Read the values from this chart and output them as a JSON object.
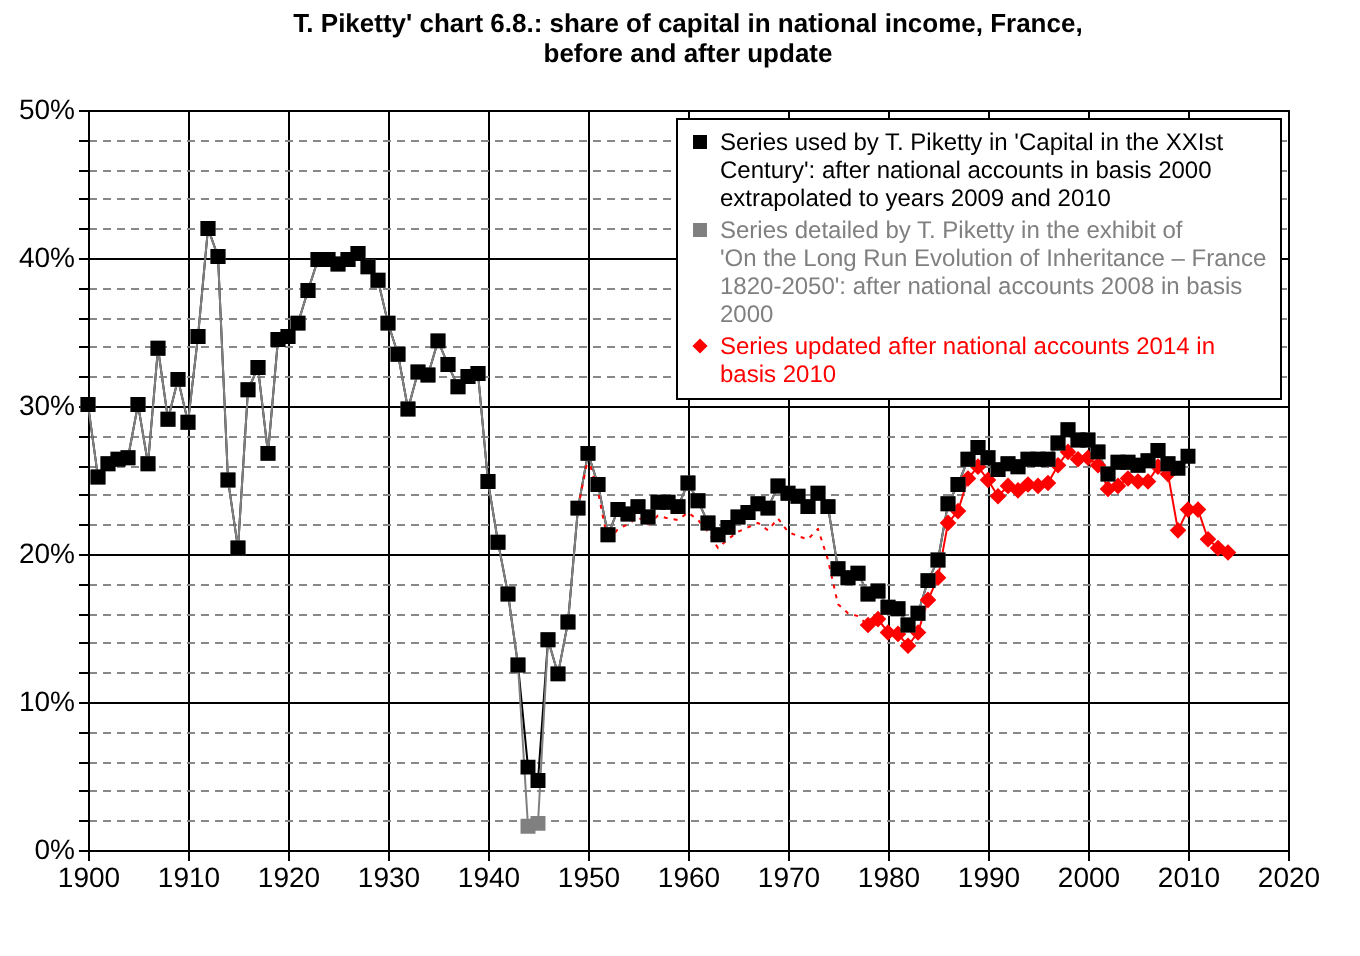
{
  "chart_data": {
    "type": "line",
    "title": "T. Piketty' chart 6.8.: share of capital in national income, France, before and after update",
    "xlim": [
      1900,
      2020
    ],
    "xticks": [
      1900,
      1910,
      1920,
      1930,
      1940,
      1950,
      1960,
      1970,
      1980,
      1990,
      2000,
      2010,
      2020
    ],
    "ylim": [
      0,
      50
    ],
    "yticks": [
      {
        "value": 0,
        "label": "0%"
      },
      {
        "value": 2,
        "label": null
      },
      {
        "value": 4,
        "label": null
      },
      {
        "value": 6,
        "label": null
      },
      {
        "value": 8,
        "label": null
      },
      {
        "value": 10,
        "label": "10%"
      },
      {
        "value": 12,
        "label": null
      },
      {
        "value": 14,
        "label": null
      },
      {
        "value": 16,
        "label": null
      },
      {
        "value": 18,
        "label": null
      },
      {
        "value": 20,
        "label": "20%"
      },
      {
        "value": 22,
        "label": null
      },
      {
        "value": 24,
        "label": null
      },
      {
        "value": 26,
        "label": null
      },
      {
        "value": 28,
        "label": null
      },
      {
        "value": 30,
        "label": "30%"
      },
      {
        "value": 32,
        "label": null
      },
      {
        "value": 34,
        "label": null
      },
      {
        "value": 36,
        "label": null
      },
      {
        "value": 38,
        "label": null
      },
      {
        "value": 40,
        "label": "40%"
      },
      {
        "value": 42,
        "label": null
      },
      {
        "value": 44,
        "label": null
      },
      {
        "value": 46,
        "label": null
      },
      {
        "value": 48,
        "label": null
      },
      {
        "value": 50,
        "label": "50%"
      }
    ],
    "grid": true,
    "legend": "top right",
    "series": [
      {
        "name": "Series used by T. Piketty in 'Capital in the XXIst Century': after national accounts in basis 2000 extrapolated to years 2009 and 2010",
        "color": "#000000",
        "marker": "square",
        "line_style": "solid",
        "x": [
          1900,
          1901,
          1902,
          1903,
          1904,
          1905,
          1906,
          1907,
          1908,
          1909,
          1910,
          1911,
          1912,
          1913,
          1914,
          1915,
          1916,
          1917,
          1918,
          1919,
          1920,
          1921,
          1922,
          1923,
          1924,
          1925,
          1926,
          1927,
          1928,
          1929,
          1930,
          1931,
          1932,
          1933,
          1934,
          1935,
          1936,
          1937,
          1938,
          1939,
          1940,
          1941,
          1942,
          1943,
          1944,
          1945,
          1946,
          1947,
          1948,
          1949,
          1950,
          1951,
          1952,
          1953,
          1954,
          1955,
          1956,
          1957,
          1958,
          1959,
          1960,
          1961,
          1962,
          1963,
          1964,
          1965,
          1966,
          1967,
          1968,
          1969,
          1970,
          1971,
          1972,
          1973,
          1974,
          1975,
          1976,
          1977,
          1978,
          1979,
          1980,
          1981,
          1982,
          1983,
          1984,
          1985,
          1986,
          1987,
          1988,
          1989,
          1990,
          1991,
          1992,
          1993,
          1994,
          1995,
          1996,
          1997,
          1998,
          1999,
          2000,
          2001,
          2002,
          2003,
          2004,
          2005,
          2006,
          2007,
          2008,
          2009,
          2010
        ],
        "values": [
          30.1,
          25.2,
          26.1,
          26.4,
          26.5,
          30.1,
          26.1,
          33.9,
          29.1,
          31.8,
          28.9,
          34.7,
          42.0,
          40.1,
          25.0,
          20.4,
          31.1,
          32.6,
          26.8,
          34.5,
          34.7,
          35.6,
          37.8,
          39.9,
          39.9,
          39.6,
          39.9,
          40.3,
          39.4,
          38.5,
          35.6,
          33.5,
          29.8,
          32.3,
          32.1,
          34.4,
          32.8,
          31.3,
          32.0,
          32.2,
          24.9,
          20.8,
          17.3,
          12.5,
          5.6,
          4.7,
          14.2,
          11.9,
          15.4,
          23.1,
          26.8,
          24.7,
          21.3,
          23.0,
          22.7,
          23.2,
          22.5,
          23.5,
          23.5,
          23.2,
          24.8,
          23.6,
          22.1,
          21.3,
          21.8,
          22.5,
          22.8,
          23.4,
          23.1,
          24.6,
          24.1,
          23.9,
          23.2,
          24.1,
          23.2,
          19.0,
          18.4,
          18.7,
          17.3,
          17.5,
          16.4,
          16.3,
          15.2,
          16.0,
          18.2,
          19.6,
          23.4,
          24.7,
          26.4,
          27.2,
          26.5,
          25.7,
          26.1,
          25.9,
          26.4,
          26.4,
          26.4,
          27.5,
          28.4,
          27.7,
          27.7,
          26.9,
          25.4,
          26.2,
          26.2,
          26.0,
          26.3,
          27.0,
          26.1,
          25.8,
          26.6
        ]
      },
      {
        "name": "Series detailed by T. Piketty in the exhibit of 'On the Long Run Evolution of Inheritance – France 1820-2050': after national accounts 2008 in basis 2000",
        "color": "#808080",
        "marker": "square",
        "line_style": "solid",
        "x": [
          1900,
          1901,
          1902,
          1903,
          1904,
          1905,
          1906,
          1907,
          1908,
          1909,
          1910,
          1911,
          1912,
          1913,
          1914,
          1915,
          1916,
          1917,
          1918,
          1919,
          1920,
          1921,
          1922,
          1923,
          1924,
          1925,
          1926,
          1927,
          1928,
          1929,
          1930,
          1931,
          1932,
          1933,
          1934,
          1935,
          1936,
          1937,
          1938,
          1939,
          1940,
          1941,
          1942,
          1943,
          1944,
          1945,
          1946,
          1947,
          1948,
          1949,
          1950,
          1951,
          1952,
          1953,
          1954,
          1955,
          1956,
          1957,
          1958,
          1959,
          1960,
          1961,
          1962,
          1963,
          1964,
          1965,
          1966,
          1967,
          1968,
          1969,
          1970,
          1971,
          1972,
          1973,
          1974,
          1975,
          1976,
          1977,
          1978,
          1979,
          1980,
          1981,
          1982,
          1983,
          1984,
          1985,
          1986,
          1987,
          1988,
          1989,
          1990,
          1991,
          1992,
          1993,
          1994,
          1995,
          1996,
          1997,
          1998,
          1999,
          2000,
          2001,
          2002,
          2003,
          2004,
          2005,
          2006,
          2007,
          2008
        ],
        "values": [
          30.1,
          25.2,
          26.1,
          26.4,
          26.5,
          30.1,
          26.1,
          33.9,
          29.1,
          31.8,
          28.9,
          34.7,
          42.0,
          40.1,
          25.0,
          20.4,
          31.1,
          32.6,
          26.8,
          34.5,
          34.7,
          35.6,
          37.8,
          39.9,
          39.9,
          39.6,
          39.9,
          40.3,
          39.4,
          38.5,
          35.6,
          33.5,
          29.8,
          32.3,
          32.1,
          34.4,
          32.8,
          31.3,
          32.0,
          32.2,
          24.9,
          20.8,
          17.3,
          12.5,
          1.6,
          1.8,
          14.2,
          11.9,
          15.4,
          23.1,
          26.8,
          24.7,
          21.3,
          23.0,
          22.7,
          23.2,
          22.5,
          23.5,
          23.5,
          23.2,
          24.8,
          23.6,
          22.1,
          21.3,
          21.8,
          22.5,
          22.8,
          23.4,
          23.1,
          24.6,
          24.1,
          23.9,
          23.2,
          24.1,
          23.2,
          19.0,
          18.4,
          18.7,
          17.3,
          17.5,
          16.4,
          16.3,
          15.2,
          16.0,
          18.2,
          19.6,
          23.4,
          24.7,
          26.4,
          27.2,
          26.5,
          25.7,
          26.1,
          25.9,
          26.4,
          26.4,
          26.4,
          27.5,
          28.4,
          27.7,
          27.7,
          26.9,
          25.4,
          26.2,
          26.2,
          26.0,
          26.3,
          27.0,
          26.1
        ]
      },
      {
        "color": "#ff0000",
        "marker": "none",
        "line_style": "dotted",
        "x": [
          1949,
          1950,
          1951,
          1952,
          1953,
          1954,
          1955,
          1956,
          1957,
          1958,
          1959,
          1960,
          1961,
          1962,
          1963,
          1964,
          1965,
          1966,
          1967,
          1968,
          1969,
          1970,
          1971,
          1972,
          1973,
          1974,
          1975,
          1976,
          1977,
          1978
        ],
        "values": [
          23.1,
          26.5,
          24.2,
          20.8,
          21.7,
          22.0,
          22.5,
          22.0,
          22.6,
          22.4,
          22.3,
          22.8,
          22.3,
          21.5,
          20.4,
          21.0,
          21.5,
          21.8,
          22.1,
          21.6,
          22.4,
          21.5,
          21.2,
          21.0,
          21.7,
          19.6,
          16.6,
          16.0,
          15.8,
          15.2
        ]
      },
      {
        "name": "Series updated after national accounts 2014 in basis 2010",
        "color": "#ff0000",
        "marker": "diamond",
        "line_style": "solid",
        "x": [
          1978,
          1979,
          1980,
          1981,
          1982,
          1983,
          1984,
          1985,
          1986,
          1987,
          1988,
          1989,
          1990,
          1991,
          1992,
          1993,
          1994,
          1995,
          1996,
          1997,
          1998,
          1999,
          2000,
          2001,
          2002,
          2003,
          2004,
          2005,
          2006,
          2007,
          2008,
          2009,
          2010,
          2011,
          2012,
          2013,
          2014
        ],
        "values": [
          15.2,
          15.6,
          14.7,
          14.6,
          13.8,
          14.7,
          16.9,
          18.4,
          22.1,
          22.9,
          25.1,
          25.9,
          25.0,
          23.9,
          24.6,
          24.3,
          24.7,
          24.6,
          24.8,
          26.0,
          26.9,
          26.4,
          26.5,
          26.0,
          24.4,
          24.6,
          25.1,
          24.9,
          24.9,
          25.9,
          25.4,
          21.6,
          23.0,
          23.0,
          21.0,
          20.4,
          20.1
        ]
      }
    ]
  }
}
